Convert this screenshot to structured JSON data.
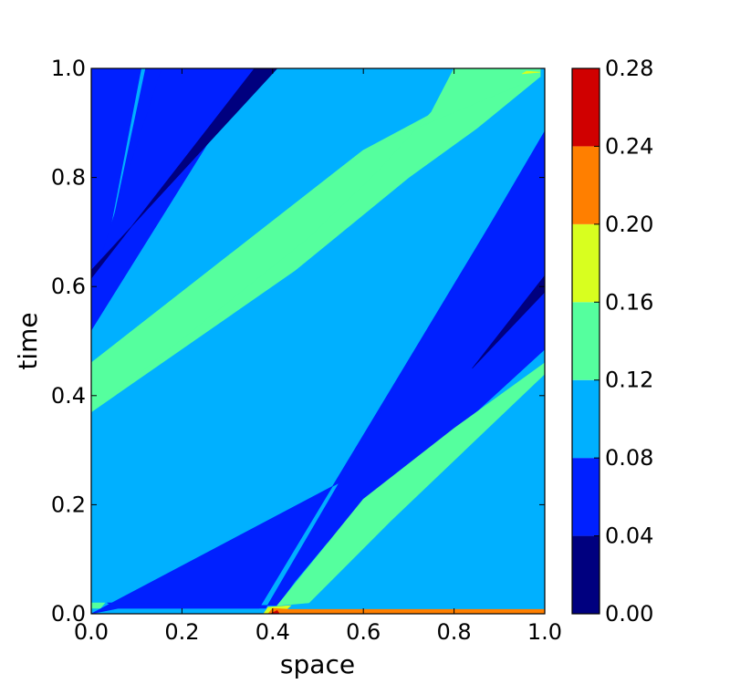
{
  "chart_data": {
    "type": "heatmap",
    "subtype": "filled-contour",
    "title": "",
    "xlabel": "space",
    "ylabel": "time",
    "xlim": [
      0.0,
      1.0
    ],
    "ylim": [
      0.0,
      1.0
    ],
    "x_ticks": [
      "0.0",
      "0.2",
      "0.4",
      "0.6",
      "0.8",
      "1.0"
    ],
    "y_ticks": [
      "0.0",
      "0.2",
      "0.4",
      "0.6",
      "0.8",
      "1.0"
    ],
    "grid": false,
    "colorbar": {
      "levels": [
        0.0,
        0.04,
        0.08,
        0.12,
        0.16,
        0.2,
        0.24,
        0.28
      ],
      "tick_labels": [
        "0.00",
        "0.04",
        "0.08",
        "0.12",
        "0.16",
        "0.20",
        "0.24",
        "0.28"
      ],
      "colors": [
        "#00007f",
        "#0020ff",
        "#00b0ff",
        "#55ff9e",
        "#d8ff1f",
        "#ff7f00",
        "#d00000"
      ]
    },
    "regions": [
      {
        "level_index": 2,
        "polygon": [
          [
            0,
            0
          ],
          [
            1,
            0
          ],
          [
            1,
            1
          ],
          [
            0,
            1
          ]
        ]
      },
      {
        "level_index": 1,
        "polygon": [
          [
            0,
            0.525
          ],
          [
            0.11,
            1.0
          ],
          [
            0,
            1.0
          ]
        ]
      },
      {
        "level_index": 1,
        "polygon": [
          [
            0.12,
            1.0
          ],
          [
            0.335,
            1.0
          ],
          [
            0.0,
            0.52
          ],
          [
            0.0,
            0.53
          ]
        ]
      },
      {
        "level_index": 1,
        "polygon": [
          [
            0.155,
            1.0
          ],
          [
            0.36,
            1.0
          ],
          [
            0.0,
            0.52
          ],
          [
            0.0,
            0.6
          ]
        ]
      },
      {
        "level_index": 0,
        "polygon": [
          [
            0.0,
            0.615
          ],
          [
            0.36,
            1.0
          ],
          [
            0.41,
            1.0
          ],
          [
            0.0,
            0.63
          ]
        ]
      },
      {
        "level_index": 3,
        "polygon": [
          [
            0.0,
            0.37
          ],
          [
            0.0,
            0.46
          ],
          [
            0.6,
            0.85
          ],
          [
            0.78,
            0.93
          ],
          [
            0.99,
            1.0
          ],
          [
            0.99,
            0.985
          ],
          [
            0.85,
            0.89
          ],
          [
            0.7,
            0.8
          ],
          [
            0.45,
            0.63
          ]
        ]
      },
      {
        "level_index": 3,
        "polygon": [
          [
            0.0,
            0.37
          ],
          [
            0.36,
            0.61
          ],
          [
            0.48,
            0.69
          ],
          [
            0.63,
            0.81
          ],
          [
            0.75,
            0.92
          ],
          [
            0.8,
            1.0
          ],
          [
            0.99,
            1.0
          ],
          [
            0.99,
            0.985
          ],
          [
            0.6,
            0.85
          ],
          [
            0.0,
            0.46
          ]
        ]
      },
      {
        "level_index": 1,
        "polygon": [
          [
            0.06,
            0.01
          ],
          [
            0.37,
            0.01
          ],
          [
            1.0,
            0.88
          ],
          [
            1.0,
            0.495
          ],
          [
            0.82,
            0.36
          ],
          [
            0.0,
            0.0
          ],
          [
            0.0,
            0.0
          ]
        ]
      },
      {
        "level_index": 1,
        "polygon": [
          [
            0.035,
            0.02
          ],
          [
            0.06,
            0.01
          ],
          [
            0.385,
            0.01
          ],
          [
            1.0,
            0.885
          ],
          [
            1.0,
            0.485
          ],
          [
            0.77,
            0.31
          ],
          [
            0.63,
            0.21
          ],
          [
            0.52,
            0.13
          ],
          [
            0.45,
            0.06
          ],
          [
            0.41,
            0.015
          ],
          [
            0.06,
            0.02
          ]
        ]
      },
      {
        "level_index": 0,
        "polygon": [
          [
            0.84,
            0.45
          ],
          [
            1.0,
            0.62
          ],
          [
            1.0,
            0.59
          ]
        ]
      },
      {
        "level_index": 3,
        "polygon": [
          [
            0.41,
            0.015
          ],
          [
            0.6,
            0.21
          ],
          [
            0.8,
            0.34
          ],
          [
            1.0,
            0.46
          ],
          [
            1.0,
            0.44
          ],
          [
            0.66,
            0.17
          ],
          [
            0.48,
            0.02
          ]
        ]
      },
      {
        "level_index": 3,
        "polygon": [
          [
            0.0,
            0.01
          ],
          [
            0.02,
            0.01
          ],
          [
            0.03,
            0.02
          ],
          [
            0.0,
            0.02
          ]
        ]
      },
      {
        "level_index": 4,
        "polygon": [
          [
            0.38,
            0.0
          ],
          [
            0.42,
            0.0
          ],
          [
            0.44,
            0.015
          ],
          [
            0.39,
            0.012
          ]
        ]
      },
      {
        "level_index": 5,
        "polygon": [
          [
            0.39,
            0.0
          ],
          [
            1.0,
            0.0
          ],
          [
            1.0,
            0.008
          ],
          [
            0.44,
            0.008
          ],
          [
            0.4,
            0.01
          ]
        ]
      },
      {
        "level_index": 6,
        "polygon": [
          [
            0.395,
            0.0
          ],
          [
            0.415,
            0.0
          ],
          [
            0.41,
            0.006
          ]
        ]
      },
      {
        "level_index": 4,
        "polygon": [
          [
            0.95,
            0.99
          ],
          [
            0.99,
            0.993
          ],
          [
            0.96,
            0.995
          ]
        ]
      }
    ]
  }
}
